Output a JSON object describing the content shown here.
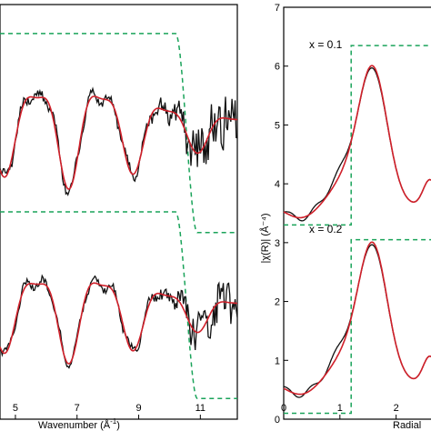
{
  "colors": {
    "experiment": "#111111",
    "fit": "#d0202a",
    "window": "#1aa35a",
    "axis": "#000000"
  },
  "chart_data": [
    {
      "type": "line",
      "panel": "k-space EXAFS (left)",
      "xlabel_main": "Wavenumber (Å",
      "xlabel_sup": "-1",
      "xlabel_close": ")",
      "xlim": [
        4.5,
        12.2
      ],
      "xticks": [
        5,
        7,
        9,
        11
      ],
      "xtick_labels": [
        "5",
        "7",
        "9",
        "11"
      ],
      "ylim": [
        0,
        1
      ],
      "grid": false,
      "traces": {
        "top": {
          "offset": 0.7,
          "amp": 0.115,
          "window": {
            "base": 0.93,
            "top_level": 0.93,
            "low_level": 0.45,
            "fall_start": 10.2,
            "fall_end": 10.9
          }
        },
        "bottom": {
          "offset": 0.26,
          "amp": 0.1,
          "window": {
            "top_level": 0.5,
            "low_level": 0.05,
            "fall_start": 10.2,
            "fall_end": 10.9
          }
        }
      }
    },
    {
      "type": "line",
      "panel": "R-space magnitude (right)",
      "ylabel": "|χ(R)| (Å⁻⁴)",
      "xlabel": "Radial",
      "xlim": [
        0,
        2.75
      ],
      "ylim": [
        0,
        7
      ],
      "yticks": [
        0,
        1,
        2,
        3,
        4,
        5,
        6,
        7
      ],
      "xticks": [
        0,
        1,
        2
      ],
      "xtick_labels": [
        "0",
        "1",
        "2"
      ],
      "grid": false,
      "annotations": [
        "x = 0.1",
        "x = 0.2"
      ],
      "traces": {
        "top": {
          "label": "x = 0.1",
          "offset": 3.0,
          "peak": {
            "R": 1.58,
            "value": 6.0
          },
          "window": {
            "low": 3.3,
            "high": 6.35,
            "rise_R": 1.2
          }
        },
        "bottom": {
          "label": "x = 0.2",
          "offset": 0.0,
          "peak": {
            "R": 1.58,
            "value": 3.0
          },
          "window": {
            "low": 0.1,
            "high": 3.05,
            "rise_R": 1.2
          }
        }
      }
    }
  ]
}
